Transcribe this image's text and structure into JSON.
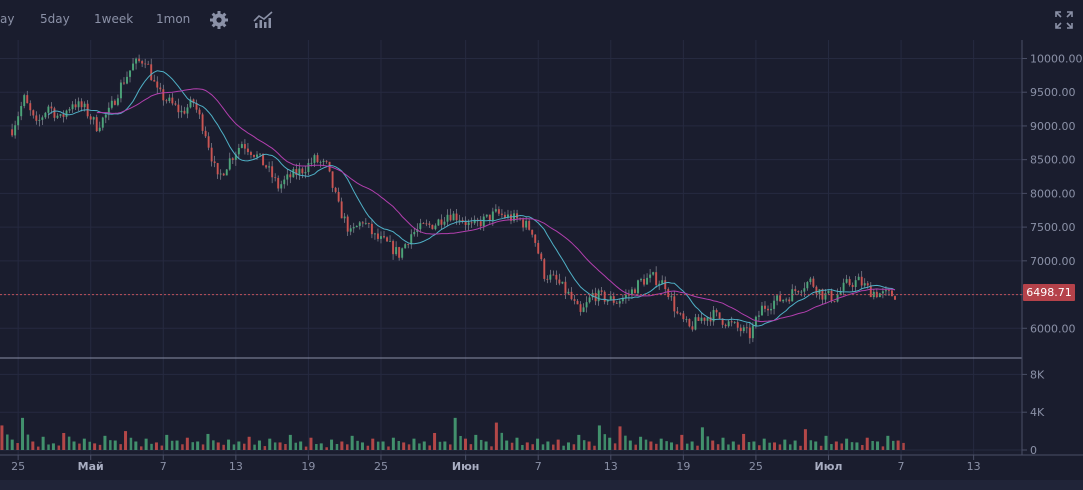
{
  "toolbar": {
    "timeframes": [
      "ay",
      "5day",
      "1week",
      "1mon"
    ],
    "icons": [
      "gear-icon",
      "indicators-icon",
      "fullscreen-icon"
    ]
  },
  "colors": {
    "background": "#1a1d2e",
    "grid": "#262a40",
    "axis_text": "#8b91a7",
    "up": "#4caf7d",
    "down": "#d9534f",
    "ma_fast": "#4fb0c6",
    "ma_slow": "#b23fae",
    "price_line": "#c0505a"
  },
  "chart_data": [
    {
      "type": "candlestick",
      "current_price": 6498.71,
      "current_price_label": "6498.71",
      "ylim": [
        5500,
        10200
      ],
      "y_ticks": [
        "10000.00",
        "9500.00",
        "9000.00",
        "8500.00",
        "8000.00",
        "7500.00",
        "7000.00",
        "6500.00",
        "6000.00"
      ],
      "y_tick_values": [
        10000,
        9500,
        9000,
        8500,
        8000,
        7500,
        7000,
        6500,
        6000
      ],
      "x_ticks": [
        "25",
        "Май",
        "7",
        "13",
        "19",
        "25",
        "Июн",
        "7",
        "13",
        "19",
        "25",
        "Июл",
        "7",
        "13"
      ],
      "x_tick_days": [
        -6,
        0,
        6,
        12,
        18,
        24,
        31,
        37,
        43,
        49,
        55,
        61,
        67,
        73
      ],
      "series": [
        {
          "key": "close",
          "x": [
            -6.5,
            -5.5,
            -4.5,
            -3.5,
            -2.5,
            -1.5,
            -0.5,
            0.5,
            1.5,
            2.5,
            3.5,
            4.5,
            5.5,
            6.5,
            7.5,
            8.5,
            9.5,
            10.5,
            11.5,
            12.5,
            13.5,
            14.5,
            15.5,
            16.5,
            17.5,
            18.5,
            19.5,
            20.5,
            21.5,
            22.5,
            23.5,
            24.5,
            25.5,
            26.5,
            27.5,
            28.5,
            29.5,
            30.5,
            31.5,
            32.5,
            33.5,
            34.5,
            35.5,
            36.5,
            37.5,
            38.5,
            39.5,
            40.5,
            41.5,
            42.5,
            43.5,
            44.5,
            45.5,
            46.5,
            47.5,
            48.5,
            49.5,
            50.5,
            51.5,
            52.5,
            53.5,
            54.5,
            55.5,
            56.5,
            57.5,
            58.5,
            59.5,
            60.5,
            61.5,
            62.5,
            63.5,
            64.5,
            65.5,
            66.5
          ],
          "y": [
            8950,
            9400,
            9000,
            9300,
            9100,
            9350,
            9250,
            9000,
            9200,
            9600,
            9900,
            10000,
            9500,
            9350,
            9200,
            9350,
            8900,
            8200,
            8500,
            8750,
            8600,
            8400,
            8100,
            8250,
            8350,
            8500,
            8400,
            7800,
            7400,
            7600,
            7350,
            7250,
            7100,
            7400,
            7500,
            7550,
            7700,
            7650,
            7500,
            7600,
            7700,
            7650,
            7600,
            7450,
            6800,
            6700,
            6500,
            6200,
            6500,
            6450,
            6400,
            6500,
            6700,
            6750,
            6650,
            6200,
            6000,
            6150,
            6200,
            6100,
            6000,
            5900,
            6300,
            6400,
            6450,
            6600,
            6700,
            6500,
            6450,
            6650,
            6700,
            6550,
            6500,
            6498.71
          ]
        }
      ],
      "moving_averages": [
        {
          "name": "",
          "color": "#4fb0c6",
          "period": 3
        },
        {
          "name": "",
          "color": "#b23fae",
          "period": 7
        }
      ]
    },
    {
      "type": "bar",
      "ylim": [
        0,
        10000
      ],
      "y_ticks": [
        "8K",
        "4K",
        "0"
      ],
      "y_tick_values": [
        8000,
        4000,
        0
      ],
      "values": [
        2600,
        1100,
        3400,
        900,
        1400,
        700,
        1800,
        900,
        1200,
        700,
        1500,
        1000,
        2000,
        900,
        1200,
        800,
        1600,
        1000,
        1300,
        900,
        1700,
        800,
        1100,
        900,
        1400,
        1000,
        1200,
        800,
        1600,
        900,
        1300,
        700,
        1100,
        900,
        1500,
        800,
        1200,
        900,
        1300,
        800,
        1200,
        900,
        1800,
        900,
        3400,
        1200,
        1600,
        900,
        2900,
        1000,
        1300,
        800,
        1200,
        900,
        1100,
        800,
        1600,
        900,
        2600,
        1300,
        2500,
        1000,
        1400,
        900,
        1200,
        800,
        1600,
        900,
        2400,
        1000,
        1300,
        900,
        1700,
        900,
        1200,
        800,
        1100,
        1000,
        2200,
        900,
        1500,
        900,
        1200,
        800,
        1300,
        900,
        1500,
        1000
      ],
      "value_colors": [
        "down",
        "up"
      ]
    }
  ]
}
